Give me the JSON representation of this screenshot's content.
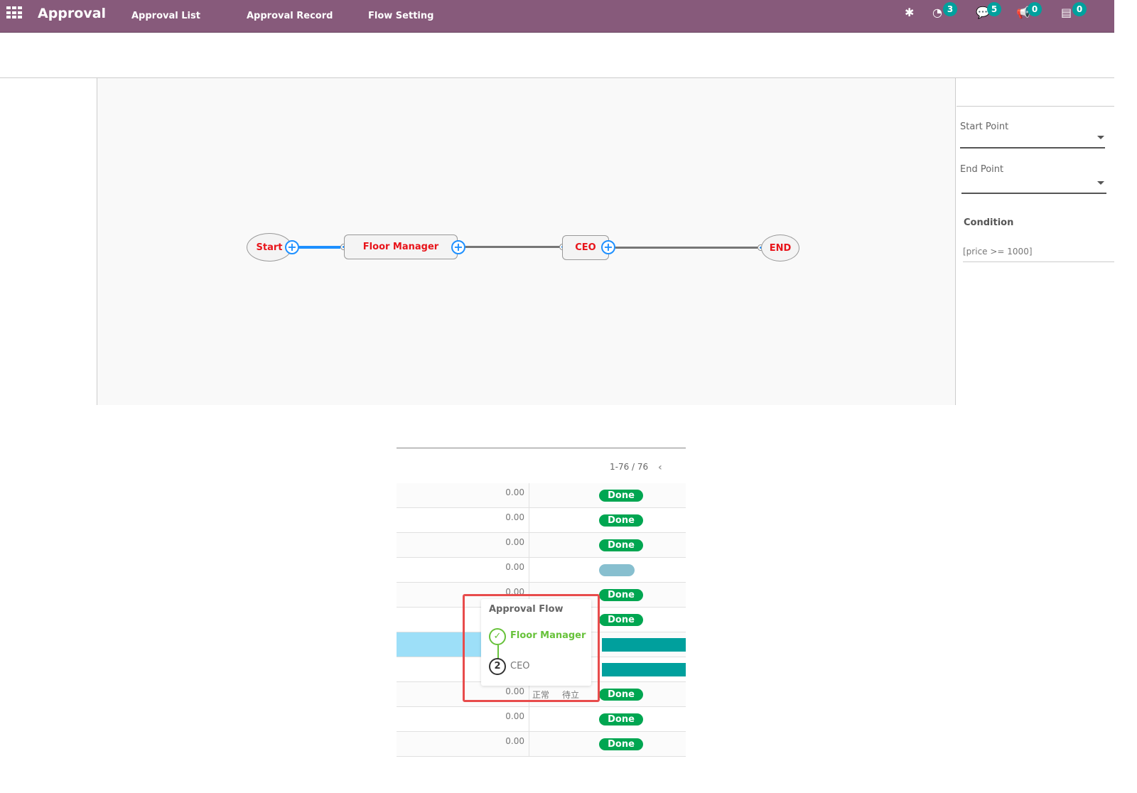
{
  "nav": {
    "brand": "Approval",
    "menu": [
      "Approval List",
      "Approval Record",
      "Flow Setting"
    ],
    "systray": [
      {
        "icon": "bug-icon"
      },
      {
        "icon": "activity-clock-icon",
        "count": "3"
      },
      {
        "icon": "chat-icon",
        "count": "5"
      },
      {
        "icon": "megaphone-icon",
        "count": "0"
      },
      {
        "icon": "task-list-icon",
        "count": "0"
      }
    ]
  },
  "flow": {
    "nodes": {
      "start": "Start",
      "floor_manager": "Floor Manager",
      "ceo": "CEO",
      "end": "END"
    },
    "add_symbol": "+"
  },
  "panel": {
    "start_point": "Start Point",
    "end_point": "End Point",
    "condition_label": "Condition",
    "condition_value": "[price >= 1000]"
  },
  "table": {
    "pager": "1-76 / 76",
    "rows": [
      {
        "amount": "0.00",
        "status": "Done"
      },
      {
        "amount": "0.00",
        "status": "Done"
      },
      {
        "amount": "0.00",
        "status": "Done"
      },
      {
        "amount": "0.00",
        "status": ""
      },
      {
        "amount": "0.00",
        "status": "Done"
      },
      {
        "amount": "",
        "status": "Done"
      },
      {
        "amount": "",
        "status": ""
      },
      {
        "amount": "",
        "status": ""
      },
      {
        "amount": "0.00",
        "state": "正常",
        "stage": "待立项",
        "status": "Done"
      },
      {
        "amount": "0.00",
        "status": "Done"
      },
      {
        "amount": "0.00",
        "status": "Done"
      }
    ]
  },
  "tooltip": {
    "title": "Approval Flow",
    "steps": [
      {
        "label": "Floor Manager",
        "state": "done"
      },
      {
        "label": "CEO",
        "number": "2"
      }
    ]
  },
  "colors": {
    "nav": "#875a7b",
    "done": "#00a651",
    "teal": "#00a09d",
    "node_text": "#e8141a",
    "highlight": "#9ddff8"
  }
}
